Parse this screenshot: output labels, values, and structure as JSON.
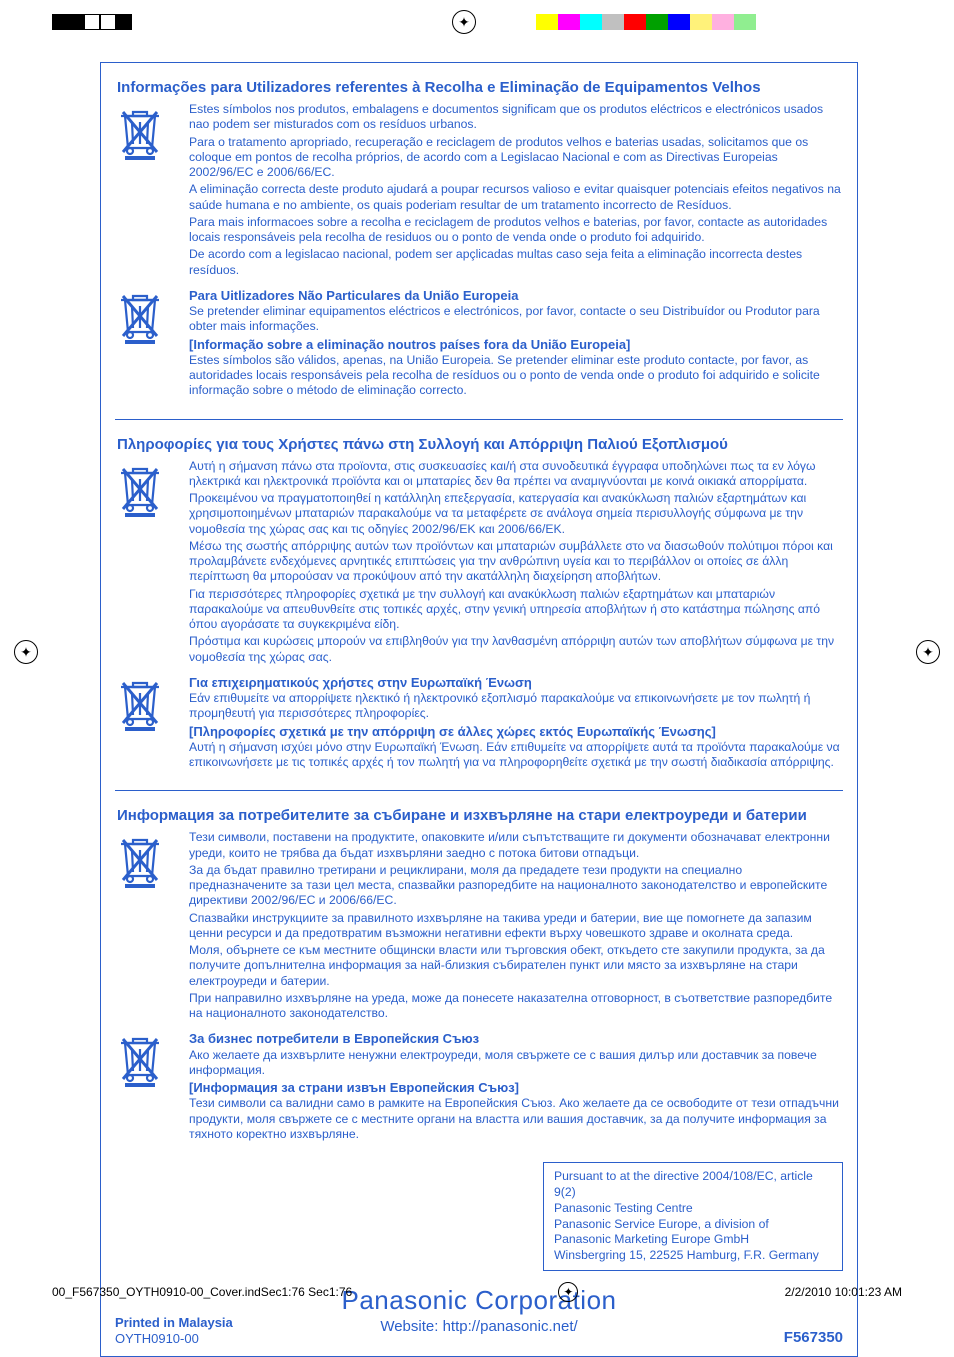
{
  "colorBar": {
    "left": [
      "#000000",
      "#000000",
      "#ffffff",
      "#ffffff",
      "#000000"
    ],
    "right": [
      "#ffff00",
      "#ff00ff",
      "#00ffff",
      "#c0c0c0",
      "#ff0000",
      "#00a000",
      "#0000ff",
      "#fff27a",
      "#ffb0e0",
      "#90ee90"
    ]
  },
  "sections": [
    {
      "title": "Informações para Utilizadores referentes à Recolha e Eliminação de Equipamentos Velhos",
      "borderAbove": false,
      "blocks": [
        {
          "paras": [
            "Estes símbolos nos produtos, embalagens e documentos significam que os produtos eléctricos e electrónicos usados nao podem ser misturados com os resíduos urbanos.",
            "Para o tratamento apropriado, recuperação e reciclagem de produtos velhos e baterias usadas, solicitamos que os coloque em pontos de recolha próprios, de acordo com a Legislacao Nacional e com as Directivas Europeias 2002/96/EC e 2006/66/EC.",
            "A eliminação correcta deste produto ajudará a poupar recursos valioso e evitar quaisquer potenciais efeitos negativos na saúde humana e no ambiente, os quais poderiam resultar de um tratamento incorrecto de Resíduos.",
            "Para mais informacoes sobre a recolha e reciclagem de produtos velhos e baterias, por favor, contacte as autoridades locais responsáveis pela recolha de residuos ou o ponto de venda onde o produto foi adquirido.",
            "De acordo com a legislacao nacional, podem ser apçlicadas multas caso seja feita a eliminação incorrecta destes resíduos."
          ]
        },
        {
          "subhead": "Para Uitlizadores Não Particulares da União Europeia",
          "paras": [
            "Se pretender eliminar equipamentos eléctricos e electrónicos, por favor, contacte o seu Distribuídor ou Produtor para obter mais informações."
          ],
          "subhead2": "[Informação sobre a eliminação noutros países fora da União Europeia]",
          "paras2": [
            "Estes símbolos são válidos, apenas, na União Europeia. Se pretender eliminar este produto contacte, por favor, as autoridades locais responsáveis pela recolha de resíduos ou o ponto de venda onde o produto foi adquirido e solicite informação sobre o método de eliminação correcto."
          ]
        }
      ]
    },
    {
      "title": "Πληροφορίες για τους Χρήστες πάνω στη Συλλογή και Απόρριψη Παλιού Εξοπλισμού",
      "borderAbove": true,
      "blocks": [
        {
          "paras": [
            "Αυτή η σήμανση πάνω στα προϊοντα, στις συσκευασίες και/ή στα συνοδευτικά έγγραφα υποδηλώνει πως τα εν λόγω ηλεκτρικά και ηλεκτρονικά προϊόντα και οι μπαταρίες δεν θα πρέπει να αναμιγνύονται με κοινά οικιακά απορρίματα.",
            "Προκειμένου να πραγματοποιηθεί η κατάλληλη επεξεργασία, κατεργασία και ανακύκλωση παλιών εξαρτημάτων και χρησιμοποιημένων μπαταριών παρακαλούμε να τα μεταφέρετε σε ανάλογα σημεία περισυλλογής σύμφωνα με την νομοθεσία της χώρας σας και τις οδηγίες 2002/96/ΕΚ και 2006/66/ΕΚ.",
            "Μέσω της σωστής απόρριψης αυτών των προϊόντων και μπαταριών συμβάλλετε στο να διασωθούν πολύτιμοι πόροι και προλαμβάνετε ενδεχόμενες αρνητικές επιπτώσεις για την ανθρώπινη υγεία και το περιβάλλον οι οποίες σε άλλη περίπτωση θα μπορούσαν να προκύψουν από την ακατάλληλη διαχείρηση αποβλήτων.",
            "Για περισσότερες πληροφορίες σχετικά με την συλλογή και ανακύκλωση παλιών εξαρτημάτων και μπαταριών παρακαλούμε να απευθυνθείτε στις τοπικές αρχές, στην γενική υπηρεσία αποβλήτων ή στο κατάστημα πώλησης από όπου αγοράσατε τα συγκεκριμένα είδη.",
            "Πρόστιμα και κυρώσεις μπορούν να επιβληθούν για την λανθασμένη απόρριψη αυτών των αποβλήτων σύμφωνα με την νομοθεσία της χώρας σας."
          ]
        },
        {
          "subhead": "Για επιχειρηματικούς χρήστες στην Ευρωπαϊκή Ένωση",
          "paras": [
            "Εάν επιθυμείτε να απορρίψετε ηλεκτικό ή ηλεκτρονικό εξοπλισμό παρακαλούμε να επικοινωνήσετε με τον πωλητή ή προμηθευτή για περισσότερες πληροφορίες."
          ],
          "subhead2": "[Πληροφορίες σχετικά με την απόρριψη σε άλλες χώρες εκτός Ευρωπαϊκής Ένωσης]",
          "paras2": [
            "Αυτή η σήμανση ισχύει μόνο στην Ευρωπαϊκή Ένωση. Εάν επιθυμείτε να απορρίψετε αυτά τα προϊόντα παρακαλούμε να επικοινωνήσετε με τις τοπικές αρχές ή τον πωλητή για να πληροφορηθείτε σχετικά με την σωστή διαδικασία απόρριψης."
          ]
        }
      ]
    },
    {
      "title": "Информация за потребителите за събиране и изхвърляне на стари електроуреди и батерии",
      "borderAbove": true,
      "blocks": [
        {
          "paras": [
            "Тези символи, поставени на продуктите, опаковките и/или съпътстващите ги документи обозначават електронни уреди, които не трябва да бъдат изхвърляни заедно с потока битови отпадъци.",
            "За да бъдат правилно третирани и рециклирани, моля да предадете тези продукти на специално предназначените за тази цел места, спазвайки разпоредбите на националното законодателство и европейските директиви 2002/96/EC и 2006/66/EC.",
            "Спазвайки инструкциите за правилното изхвърляне на такива уреди и батерии, вие ще помогнете да запазим ценни ресурси и да предотвратим възможни негативни ефекти върху човешкото здраве и околната среда.",
            "Моля, обърнете се към местните общински власти или търговския обект, откъдето сте закупили продукта, за да получите допълнителна информация за най-близкия събирателен пункт или място за изхвърляне на стари електроуреди и батерии.",
            "При направилно изхвърляне на уреда, може да понесете наказателна отговорност, в съответствие разпоредбите на националното законодателство."
          ]
        },
        {
          "subhead": "За бизнес потребители в Европейския Съюз",
          "paras": [
            "Ако желаете да изхвърлите ненужни електроуреди, моля свържете се с вашия дилър или доставчик за повече информация."
          ],
          "subhead2": "[Информация за страни извън Европейския Съюз]",
          "paras2": [
            "Тези символи са валидни само в рамките на Европейския Съюз. Ако желаете да се освободите от тези отпадъчни продукти, моля свържете се с местните органи на властта или вашия доставчик, за да получите информация за тяхното коректно изхвърляне."
          ]
        }
      ]
    }
  ],
  "directive": [
    "Pursuant to at the directive 2004/108/EC, article 9(2)",
    "Panasonic Testing Centre",
    "Panasonic Service Europe, a division of",
    "Panasonic Marketing Europe GmbH",
    "Winsbergring 15, 22525 Hamburg, F.R. Germany"
  ],
  "corp": {
    "name": "Panasonic Corporation",
    "site": "Website: http://panasonic.net/"
  },
  "footLeft": {
    "printed": "Printed in Malaysia",
    "code": "OYTH0910-00"
  },
  "footRight": "F567350",
  "pageFooter": {
    "file": "00_F567350_OYTH0910-00_Cover.indSec1:76   Sec1:76",
    "date": "2/2/2010   10:01:23 AM"
  }
}
